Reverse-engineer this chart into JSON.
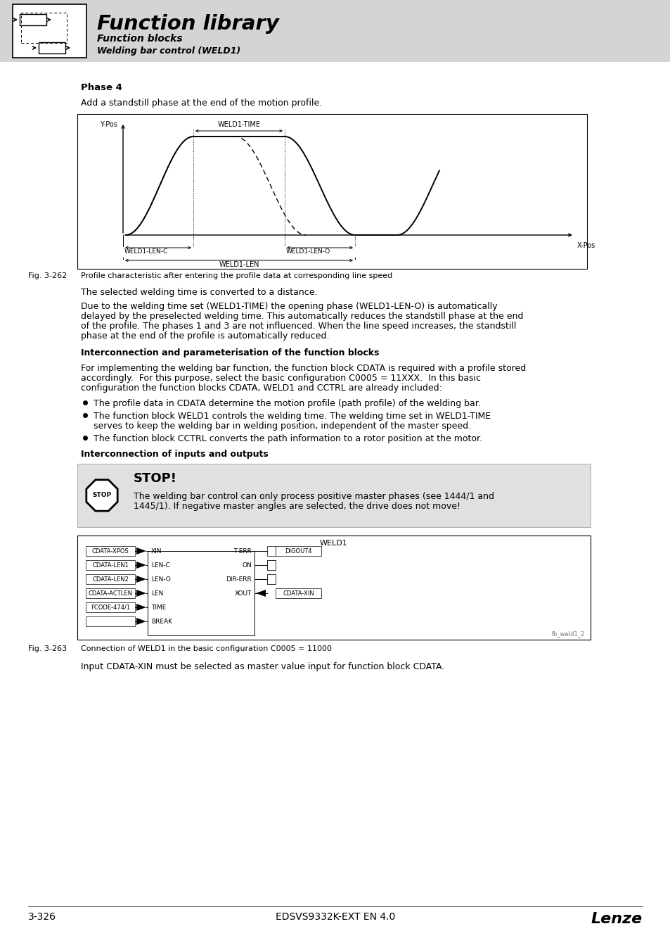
{
  "page_bg": "#ffffff",
  "header_bg": "#d4d4d4",
  "header_title": "Function library",
  "header_sub1": "Function blocks",
  "header_sub2": "Welding bar control (WELD1)",
  "section_title": "Phase 4",
  "section_text1": "Add a standstill phase at the end of the motion profile.",
  "fig_caption_prefix": "Fig. 3-262",
  "fig_caption_text": "Profile characteristic after entering the profile data at corresponding line speed",
  "text_after_fig": "The selected welding time is converted to a distance.",
  "para2_lines": [
    "Due to the welding time set (WELD1-TIME) the opening phase (WELD1-LEN-O) is automatically",
    "delayed by the preselected welding time. This automatically reduces the standstill phase at the end",
    "of the profile. The phases 1 and 3 are not influenced. When the line speed increases, the standstill",
    "phase at the end of the profile is automatically reduced."
  ],
  "section2_title": "Interconnection and parameterisation of the function blocks",
  "para3_lines": [
    "For implementing the welding bar function, the function block CDATA is required with a profile stored",
    "accordingly.  For this purpose, select the basic configuration C0005 = 11XXX.  In this basic",
    "configuration the function blocks CDATA, WELD1 and CCTRL are already included:"
  ],
  "bullet1_line1": "The profile data in CDATA determine the motion profile (path profile) of the welding bar.",
  "bullet2_line1": "The function block WELD1 controls the welding time. The welding time set in WELD1-TIME",
  "bullet2_line2": "serves to keep the welding bar in welding position, independent of the master speed.",
  "bullet3_line1": "The function block CCTRL converts the path information to a rotor position at the motor.",
  "section3_title": "Interconnection of inputs and outputs",
  "stop_title": "STOP!",
  "stop_line1": "The welding bar control can only process positive master phases (see 1444/1 and",
  "stop_line2": "1445/1). If negative master angles are selected, the drive does not move!",
  "weld1_label": "WELD1",
  "weld1_inputs": [
    "CDATA-XPOS",
    "CDATA-LEN1",
    "CDATA-LEN2",
    "CDATA-ACTLEN",
    "FCODE-474/1",
    ""
  ],
  "weld1_in_pins": [
    "XIN",
    "LEN-C",
    "LEN-O",
    "LEN",
    "TIME",
    "BREAK"
  ],
  "weld1_out_pins": [
    "T-ERR",
    "ON",
    "DIR-ERR",
    "XOUT",
    "",
    ""
  ],
  "weld1_outputs": [
    "DIGOUT4",
    "",
    "",
    "CDATA-XIN",
    "",
    ""
  ],
  "fb_ref": "fb_weld1_2",
  "fig2_caption_prefix": "Fig. 3-263",
  "fig2_caption_text": "Connection of WELD1 in the basic configuration C0005 = 11000",
  "text_end": "Input CDATA-XIN must be selected as master value input for function block CDATA.",
  "footer_left": "3-326",
  "footer_center": "EDSVS9332K-EXT EN 4.0",
  "footer_right": "Lenze"
}
